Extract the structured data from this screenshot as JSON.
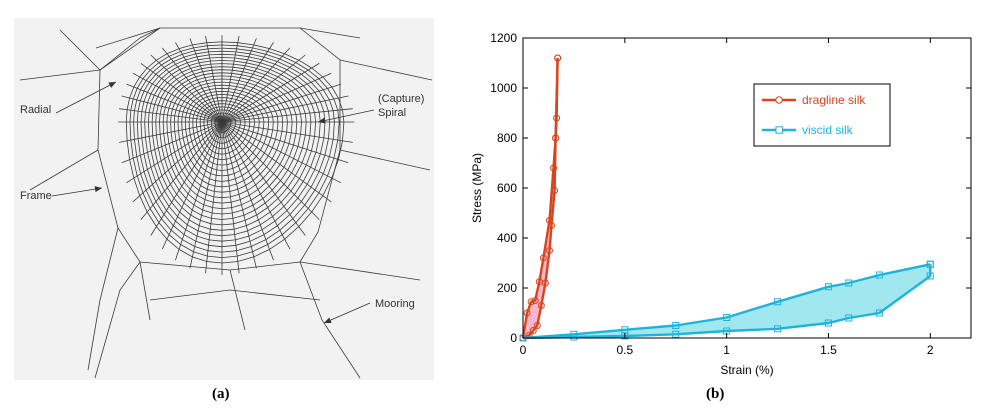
{
  "panel_a": {
    "caption": "(a)",
    "labels": {
      "radial": "Radial",
      "capture_line1": "(Capture)",
      "capture_line2": "Spiral",
      "frame": "Frame",
      "mooring": "Mooring"
    }
  },
  "panel_b": {
    "caption": "(b)"
  },
  "chart_data": {
    "type": "line",
    "xlabel": "Strain (%)",
    "ylabel": "Stress (MPa)",
    "xlim": [
      0,
      2.2
    ],
    "ylim": [
      0,
      1200
    ],
    "xticks": [
      0,
      0.5,
      1,
      1.5,
      2
    ],
    "xtick_labels": [
      "0",
      "0.5",
      "1",
      "1.5",
      "2"
    ],
    "yticks": [
      0,
      200,
      400,
      600,
      800,
      1000,
      1200
    ],
    "ytick_labels": [
      "0",
      "200",
      "400",
      "600",
      "800",
      "1000",
      "1200"
    ],
    "grid": false,
    "legend_position": "top-right",
    "series": [
      {
        "name": "dragline silk",
        "color": "#d9441c",
        "fill": "#f3a9c6",
        "marker": "circle",
        "loading": [
          [
            0,
            0
          ],
          [
            0.02,
            100
          ],
          [
            0.04,
            145
          ],
          [
            0.06,
            150
          ],
          [
            0.08,
            225
          ],
          [
            0.1,
            320
          ],
          [
            0.13,
            470
          ],
          [
            0.15,
            680
          ],
          [
            0.16,
            800
          ],
          [
            0.17,
            1120
          ]
        ],
        "unloading": [
          [
            0.17,
            1120
          ],
          [
            0.165,
            880
          ],
          [
            0.16,
            800
          ],
          [
            0.155,
            590
          ],
          [
            0.14,
            450
          ],
          [
            0.13,
            350
          ],
          [
            0.11,
            220
          ],
          [
            0.09,
            130
          ],
          [
            0.07,
            50
          ],
          [
            0.05,
            30
          ],
          [
            0.03,
            10
          ],
          [
            0,
            0
          ]
        ]
      },
      {
        "name": "viscid silk",
        "color": "#1fb3dc",
        "fill": "#8fe3ec",
        "marker": "square",
        "loading": [
          [
            0,
            0
          ],
          [
            0.25,
            15
          ],
          [
            0.5,
            33
          ],
          [
            0.75,
            50
          ],
          [
            1.0,
            82
          ],
          [
            1.25,
            145
          ],
          [
            1.5,
            205
          ],
          [
            1.6,
            220
          ],
          [
            1.75,
            252
          ],
          [
            2.0,
            295
          ]
        ],
        "unloading": [
          [
            2.0,
            295
          ],
          [
            2.0,
            248
          ],
          [
            1.75,
            100
          ],
          [
            1.6,
            80
          ],
          [
            1.5,
            60
          ],
          [
            1.25,
            37
          ],
          [
            1.0,
            28
          ],
          [
            0.75,
            15
          ],
          [
            0.5,
            8
          ],
          [
            0.25,
            4
          ],
          [
            0,
            0
          ]
        ]
      }
    ]
  }
}
